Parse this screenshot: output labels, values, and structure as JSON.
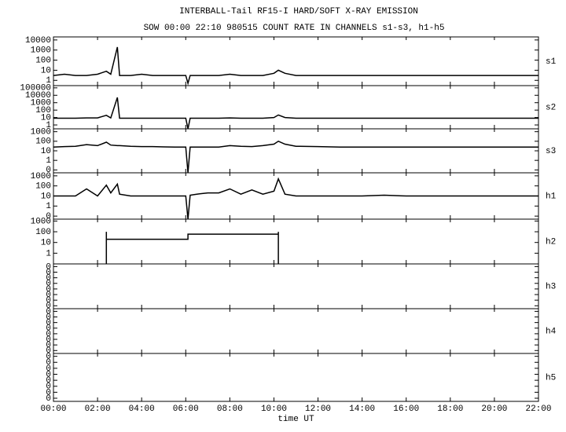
{
  "chart_data": [
    {
      "type": "line",
      "title": "INTERBALL-Tail RF15-I HARD/SOFT X-RAY EMISSION",
      "subtitle": "SOW 00:00 22:10 980515  COUNT RATE IN CHANNELS s1-s3, h1-h5",
      "name": "s1",
      "log_scale": true,
      "color": "#000000",
      "x": [
        0,
        0.5,
        1,
        1.5,
        2,
        2.4,
        2.6,
        2.9,
        3,
        3.5,
        4,
        4.5,
        5,
        5.5,
        6,
        6.1,
        6.2,
        6.5,
        7,
        7.5,
        8,
        8.5,
        9,
        9.5,
        10,
        10.2,
        10.5,
        11,
        12,
        13,
        14,
        15,
        16,
        17,
        18,
        19,
        20,
        21,
        22
      ],
      "values": [
        3,
        4,
        3,
        3,
        4,
        8,
        4,
        2000,
        3,
        3,
        4,
        3,
        3,
        3,
        3,
        0.5,
        3,
        3,
        3,
        3,
        4,
        3,
        3,
        3,
        5,
        10,
        5,
        3,
        3,
        3,
        3,
        3,
        3,
        3,
        3,
        3,
        3,
        3,
        3
      ],
      "xlim": [
        0,
        22
      ],
      "ylim": [
        0.3,
        20000
      ],
      "yticks": [
        10000,
        1000,
        100,
        10,
        1
      ]
    },
    {
      "type": "line",
      "name": "s2",
      "log_scale": true,
      "color": "#000000",
      "x": [
        0,
        0.5,
        1,
        1.5,
        2,
        2.4,
        2.6,
        2.9,
        3,
        3.5,
        4,
        4.5,
        5,
        5.5,
        6,
        6.1,
        6.2,
        6.5,
        7,
        7.5,
        8,
        8.5,
        9,
        9.5,
        10,
        10.2,
        10.5,
        11,
        12,
        13,
        14,
        15,
        16,
        17,
        18,
        19,
        20,
        21,
        22
      ],
      "values": [
        8,
        8,
        8,
        9,
        9,
        20,
        9,
        5000,
        8,
        8,
        8,
        8,
        8,
        8,
        8,
        0.3,
        8,
        8,
        8,
        8,
        9,
        8,
        8,
        8,
        10,
        22,
        10,
        8,
        8,
        8,
        8,
        8,
        8,
        8,
        8,
        8,
        8,
        8,
        8
      ],
      "xlim": [
        0,
        22
      ],
      "ylim": [
        0.3,
        200000
      ],
      "yticks": [
        100000,
        10000,
        1000,
        100,
        10,
        1
      ]
    },
    {
      "type": "line",
      "name": "s3",
      "log_scale": true,
      "color": "#000000",
      "x": [
        0,
        0.5,
        1,
        1.5,
        2,
        2.4,
        2.6,
        2.9,
        3,
        3.5,
        4,
        4.5,
        5,
        5.5,
        6,
        6.1,
        6.2,
        6.5,
        7,
        7.5,
        8,
        8.5,
        9,
        9.5,
        10,
        10.2,
        10.5,
        11,
        12,
        13,
        14,
        15,
        16,
        17,
        18,
        19,
        20,
        21,
        22
      ],
      "values": [
        25,
        28,
        30,
        45,
        35,
        80,
        40,
        35,
        35,
        30,
        28,
        28,
        26,
        25,
        25,
        0.05,
        25,
        25,
        25,
        25,
        35,
        30,
        28,
        35,
        50,
        100,
        50,
        30,
        28,
        25,
        25,
        25,
        25,
        25,
        25,
        25,
        25,
        25,
        25
      ],
      "xlim": [
        0,
        22
      ],
      "ylim": [
        0.05,
        2000
      ],
      "yticks": [
        1000,
        100,
        10,
        1,
        {
          "value": 0.1,
          "label": "0"
        }
      ]
    },
    {
      "type": "line",
      "name": "h1",
      "log_scale": true,
      "color": "#000000",
      "x": [
        0,
        0.5,
        1,
        1.5,
        2,
        2.4,
        2.6,
        2.9,
        3,
        3.5,
        4,
        4.5,
        5,
        5.5,
        6,
        6.1,
        6.2,
        6.5,
        7,
        7.5,
        8,
        8.5,
        9,
        9.5,
        10,
        10.2,
        10.5,
        11,
        12,
        13,
        14,
        15,
        16,
        17,
        18,
        19,
        20,
        21,
        22
      ],
      "values": [
        10,
        10,
        10,
        50,
        10,
        120,
        20,
        150,
        15,
        10,
        10,
        10,
        10,
        10,
        10,
        0.05,
        12,
        15,
        20,
        20,
        50,
        15,
        40,
        15,
        30,
        500,
        15,
        10,
        10,
        10,
        10,
        12,
        10,
        10,
        10,
        10,
        10,
        10,
        10
      ],
      "xlim": [
        0,
        22
      ],
      "ylim": [
        0.05,
        2000
      ],
      "yticks": [
        1000,
        100,
        10,
        1,
        {
          "value": 0.1,
          "label": "0"
        }
      ]
    },
    {
      "type": "line",
      "name": "h2",
      "log_scale": true,
      "color": "#000000",
      "x": [
        2.4,
        2.4,
        2.4,
        6.1,
        6.1,
        10.2,
        10.2,
        10.2
      ],
      "values": [
        0.1,
        100,
        20,
        20,
        60,
        60,
        100,
        0.1
      ],
      "xlim": [
        0,
        22
      ],
      "ylim": [
        0.1,
        1500
      ],
      "yticks": [
        1000,
        100,
        10,
        1
      ]
    },
    {
      "type": "line",
      "name": "h3",
      "log_scale": true,
      "xlim": [
        0,
        22
      ],
      "ylim": [
        3e-08,
        3
      ],
      "yticks": [
        {
          "value": 1,
          "label": "0"
        },
        {
          "value": 0.1,
          "label": "0"
        },
        {
          "value": 0.01,
          "label": "0"
        },
        {
          "value": 0.001,
          "label": "0"
        },
        {
          "value": 0.0001,
          "label": "0"
        },
        {
          "value": 1e-05,
          "label": "0"
        },
        {
          "value": 1e-06,
          "label": "0"
        },
        {
          "value": 1e-07,
          "label": "0"
        }
      ]
    },
    {
      "type": "line",
      "name": "h4",
      "log_scale": true,
      "xlim": [
        0,
        22
      ],
      "ylim": [
        3e-08,
        3
      ],
      "yticks": [
        {
          "value": 1,
          "label": "0"
        },
        {
          "value": 0.1,
          "label": "0"
        },
        {
          "value": 0.01,
          "label": "0"
        },
        {
          "value": 0.001,
          "label": "0"
        },
        {
          "value": 0.0001,
          "label": "0"
        },
        {
          "value": 1e-05,
          "label": "0"
        },
        {
          "value": 1e-06,
          "label": "0"
        },
        {
          "value": 1e-07,
          "label": "0"
        }
      ]
    },
    {
      "type": "line",
      "name": "h5",
      "log_scale": true,
      "xlim": [
        0,
        22
      ],
      "ylim": [
        3e-08,
        3
      ],
      "xlabel": "time UT",
      "yticks": [
        {
          "value": 1,
          "label": "0"
        },
        {
          "value": 0.1,
          "label": "0"
        },
        {
          "value": 0.01,
          "label": "0"
        },
        {
          "value": 0.001,
          "label": "0"
        },
        {
          "value": 0.0001,
          "label": "0"
        },
        {
          "value": 1e-05,
          "label": "0"
        },
        {
          "value": 1e-06,
          "label": "0"
        },
        {
          "value": 1e-07,
          "label": "0"
        }
      ],
      "xticks": [
        {
          "value": 0,
          "label": "00:00"
        },
        {
          "value": 2,
          "label": "02:00"
        },
        {
          "value": 4,
          "label": "04:00"
        },
        {
          "value": 6,
          "label": "06:00"
        },
        {
          "value": 8,
          "label": "08:00"
        },
        {
          "value": 10,
          "label": "10:00"
        },
        {
          "value": 12,
          "label": "12:00"
        },
        {
          "value": 14,
          "label": "14:00"
        },
        {
          "value": 16,
          "label": "16:00"
        },
        {
          "value": 18,
          "label": "18:00"
        },
        {
          "value": 20,
          "label": "20:00"
        },
        {
          "value": 22,
          "label": "22:00"
        }
      ]
    }
  ]
}
